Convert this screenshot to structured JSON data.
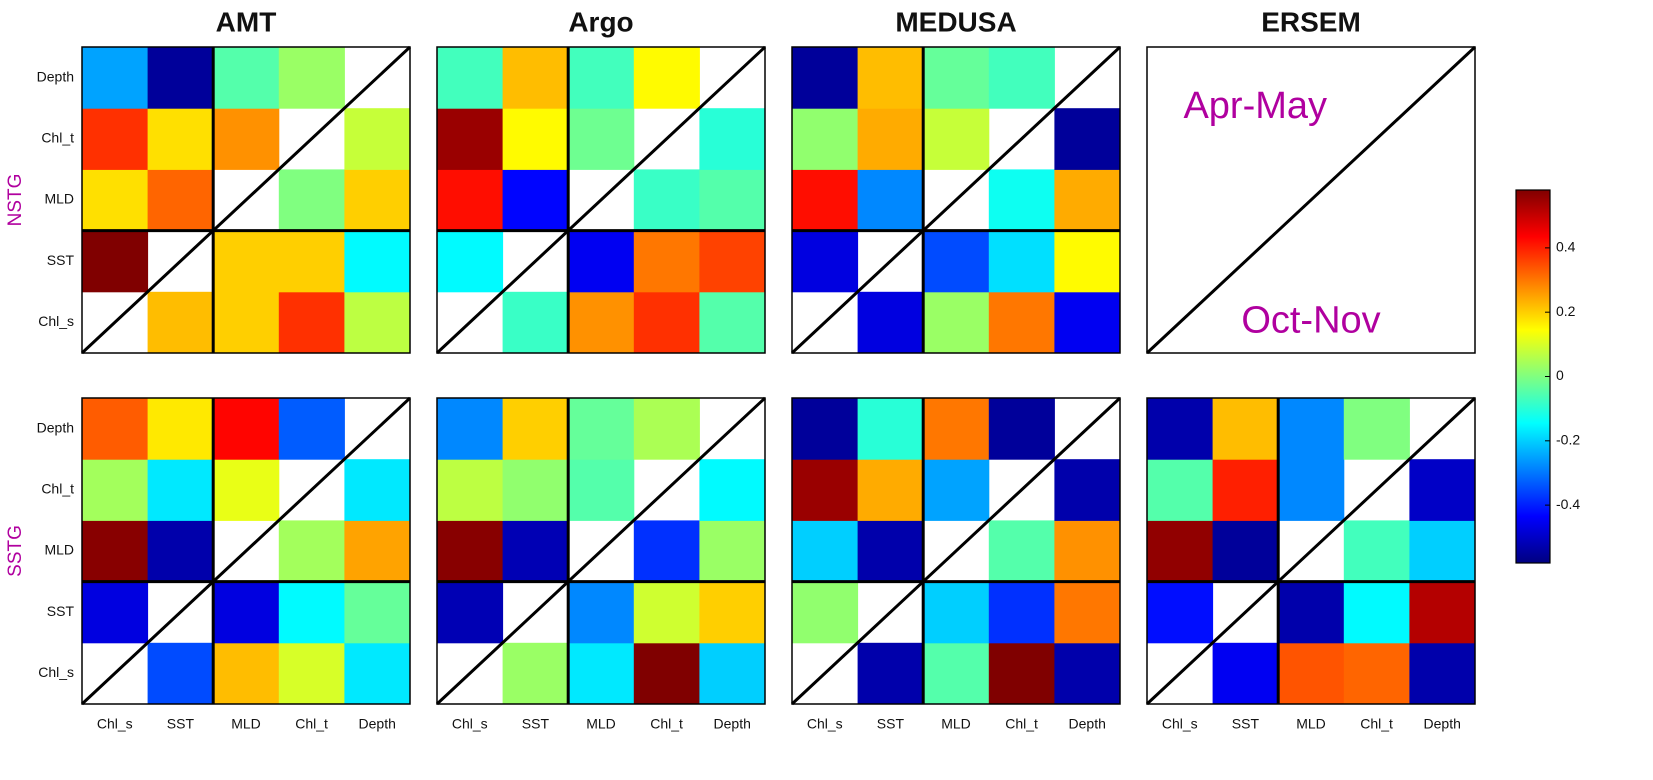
{
  "chart_data": {
    "type": "heatmap",
    "colormap": "jet",
    "columns": [
      "AMT",
      "Argo",
      "MEDUSA",
      "ERSEM"
    ],
    "rows": [
      "NSTG",
      "SSTG"
    ],
    "x": [
      "Chl_s",
      "SST",
      "MLD",
      "Chl_t",
      "Depth"
    ],
    "y": [
      "Chl_s",
      "SST",
      "MLD",
      "Chl_t",
      "Depth"
    ],
    "clim": [
      -0.58,
      0.58
    ],
    "cticks": [
      -0.4,
      -0.2,
      0,
      0.2,
      0.4
    ],
    "panels": [
      [
        {
          "values": [
            [
              null,
              0.22,
              0.2,
              0.38,
              0.07
            ],
            [
              0.58,
              null,
              0.2,
              0.2,
              -0.15
            ],
            [
              0.18,
              0.32,
              null,
              0.0,
              0.2
            ],
            [
              0.38,
              0.18,
              0.27,
              null,
              0.08
            ],
            [
              -0.25,
              -0.55,
              -0.05,
              0.03,
              null
            ]
          ]
        },
        {
          "values": [
            [
              null,
              -0.08,
              0.27,
              0.38,
              -0.05
            ],
            [
              -0.15,
              null,
              -0.45,
              0.3,
              0.36
            ],
            [
              0.42,
              -0.43,
              null,
              -0.08,
              -0.05
            ],
            [
              0.55,
              0.15,
              -0.02,
              null,
              -0.1
            ],
            [
              -0.07,
              0.22,
              -0.07,
              0.15,
              null
            ]
          ]
        },
        {
          "values": [
            [
              null,
              -0.47,
              0.03,
              0.3,
              -0.45
            ],
            [
              -0.47,
              null,
              -0.35,
              -0.18,
              0.15
            ],
            [
              0.42,
              -0.28,
              null,
              -0.13,
              0.24
            ],
            [
              0.02,
              0.24,
              0.08,
              null,
              -0.55
            ],
            [
              -0.55,
              0.22,
              -0.03,
              -0.07,
              null
            ]
          ]
        },
        {
          "values": [
            [
              null,
              null,
              null,
              null,
              null
            ],
            [
              null,
              null,
              null,
              null,
              null
            ],
            [
              null,
              null,
              null,
              null,
              null
            ],
            [
              null,
              null,
              null,
              null,
              null
            ],
            [
              null,
              null,
              null,
              null,
              null
            ]
          ],
          "annotations": [
            "Apr-May",
            "Oct-Nov"
          ]
        }
      ],
      [
        {
          "values": [
            [
              null,
              -0.35,
              0.22,
              0.1,
              -0.17
            ],
            [
              -0.47,
              null,
              -0.47,
              -0.15,
              -0.03
            ],
            [
              0.57,
              -0.53,
              null,
              0.04,
              0.25
            ],
            [
              0.04,
              -0.17,
              0.12,
              null,
              -0.17
            ],
            [
              0.33,
              0.17,
              0.43,
              -0.33,
              null
            ]
          ]
        },
        {
          "values": [
            [
              null,
              0.03,
              -0.17,
              0.58,
              -0.2
            ],
            [
              -0.52,
              null,
              -0.28,
              0.09,
              0.2
            ],
            [
              0.57,
              -0.52,
              null,
              -0.38,
              0.03
            ],
            [
              0.07,
              0.02,
              -0.05,
              null,
              -0.15
            ],
            [
              -0.28,
              0.2,
              -0.03,
              0.05,
              null
            ]
          ]
        },
        {
          "values": [
            [
              null,
              -0.53,
              -0.05,
              0.58,
              -0.53
            ],
            [
              0.02,
              null,
              -0.2,
              -0.38,
              0.3
            ],
            [
              -0.2,
              -0.53,
              null,
              -0.05,
              0.27
            ],
            [
              0.55,
              0.24,
              -0.25,
              null,
              -0.53
            ],
            [
              -0.55,
              -0.1,
              0.3,
              -0.55,
              null
            ]
          ]
        },
        {
          "values": [
            [
              null,
              -0.45,
              0.34,
              0.32,
              -0.53
            ],
            [
              -0.42,
              null,
              -0.53,
              -0.15,
              0.52
            ],
            [
              0.56,
              -0.55,
              null,
              -0.07,
              -0.2
            ],
            [
              -0.05,
              0.4,
              -0.28,
              null,
              -0.5
            ],
            [
              -0.53,
              0.22,
              -0.28,
              0.0,
              null
            ]
          ]
        }
      ]
    ]
  }
}
